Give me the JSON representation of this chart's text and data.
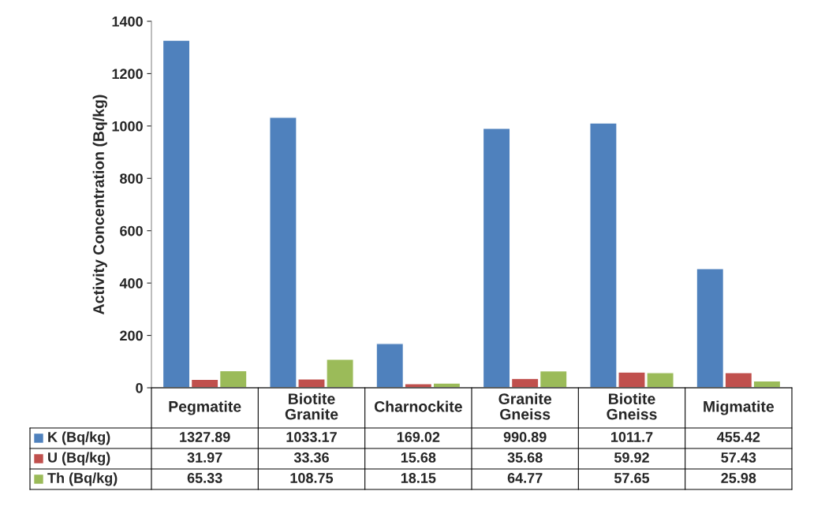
{
  "chart_data": {
    "type": "bar",
    "ylabel": "Activity Concentration (Bq/kg)",
    "categories": [
      "Pegmatite",
      "Biotite Granite",
      "Charnockite",
      "Granite Gneiss",
      "Biotite Gneiss",
      "Migmatite"
    ],
    "series": [
      {
        "name": "K (Bq/kg)",
        "color": "#4f81bd",
        "values": [
          1327.89,
          1033.17,
          169.02,
          990.89,
          1011.7,
          455.42
        ]
      },
      {
        "name": "U (Bq/kg)",
        "color": "#c0504d",
        "values": [
          31.97,
          33.36,
          15.68,
          35.68,
          59.92,
          57.43
        ]
      },
      {
        "name": "Th (Bq/kg)",
        "color": "#9bbb59",
        "values": [
          65.33,
          108.75,
          18.15,
          64.77,
          57.65,
          25.98
        ]
      }
    ],
    "ylim": [
      0,
      1400
    ],
    "yticks": [
      0,
      200,
      400,
      600,
      800,
      1000,
      1200,
      1400
    ],
    "grid": false,
    "legend": "bottom",
    "data_labels": true
  }
}
